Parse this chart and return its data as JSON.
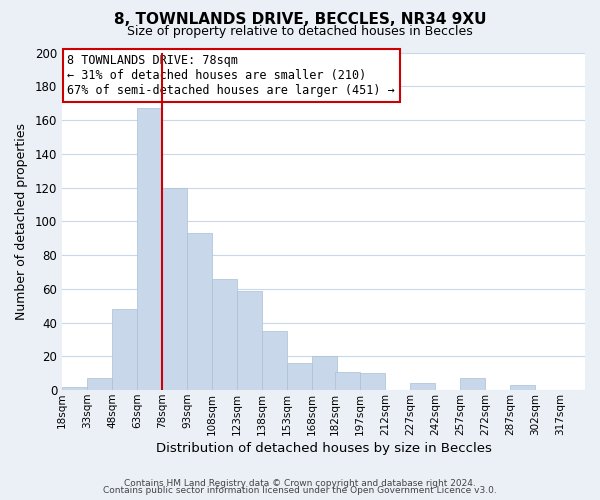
{
  "title": "8, TOWNLANDS DRIVE, BECCLES, NR34 9XU",
  "subtitle": "Size of property relative to detached houses in Beccles",
  "xlabel": "Distribution of detached houses by size in Beccles",
  "ylabel": "Number of detached properties",
  "bar_color": "#c8d8ea",
  "bar_edge_color": "#a8c0d4",
  "vline_x": 78,
  "vline_color": "#cc0000",
  "categories": [
    "18sqm",
    "33sqm",
    "48sqm",
    "63sqm",
    "78sqm",
    "93sqm",
    "108sqm",
    "123sqm",
    "138sqm",
    "153sqm",
    "168sqm",
    "182sqm",
    "197sqm",
    "212sqm",
    "227sqm",
    "242sqm",
    "257sqm",
    "272sqm",
    "287sqm",
    "302sqm",
    "317sqm"
  ],
  "bin_edges": [
    18,
    33,
    48,
    63,
    78,
    93,
    108,
    123,
    138,
    153,
    168,
    182,
    197,
    212,
    227,
    242,
    257,
    272,
    287,
    302,
    317,
    332
  ],
  "values": [
    2,
    7,
    48,
    167,
    120,
    93,
    66,
    59,
    35,
    16,
    20,
    11,
    10,
    0,
    4,
    0,
    7,
    0,
    3,
    0,
    0
  ],
  "ylim": [
    0,
    200
  ],
  "yticks": [
    0,
    20,
    40,
    60,
    80,
    100,
    120,
    140,
    160,
    180,
    200
  ],
  "annotation_title": "8 TOWNLANDS DRIVE: 78sqm",
  "annotation_line1": "← 31% of detached houses are smaller (210)",
  "annotation_line2": "67% of semi-detached houses are larger (451) →",
  "annotation_box_color": "white",
  "annotation_box_edge": "#cc0000",
  "footer1": "Contains HM Land Registry data © Crown copyright and database right 2024.",
  "footer2": "Contains public sector information licensed under the Open Government Licence v3.0.",
  "background_color": "#eaf0f6",
  "plot_background": "white",
  "grid_color": "#c8d8e8"
}
